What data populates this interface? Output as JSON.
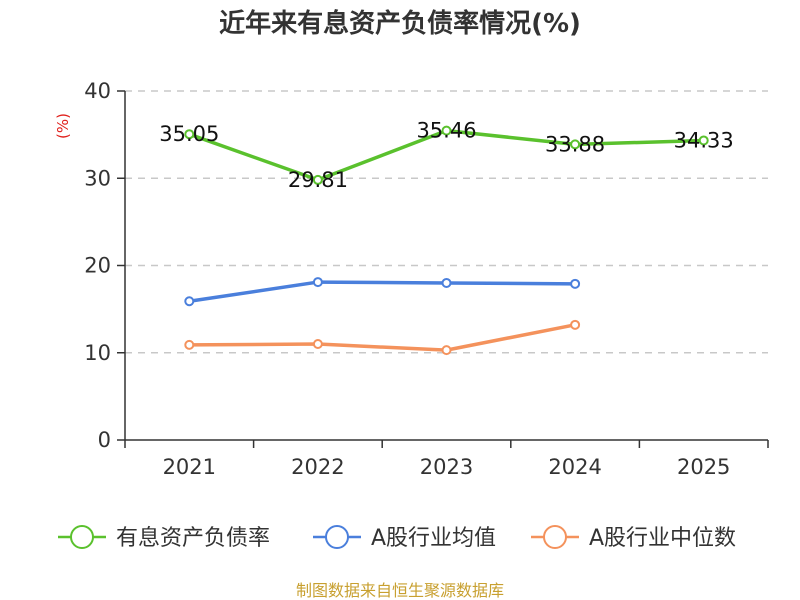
{
  "title": "近年来有息资产负债率情况(%)",
  "source": "制图数据来自恒生聚源数据库",
  "chart_data": {
    "type": "line",
    "title": "近年来有息资产负债率情况(%)",
    "ylabel": "(%)",
    "xlabel": "",
    "categories": [
      "2021",
      "2022",
      "2023",
      "2024",
      "2025"
    ],
    "ylim": [
      0,
      40
    ],
    "yticks": [
      0,
      10,
      20,
      30,
      40
    ],
    "grid": true,
    "legend_position": "bottom",
    "series": [
      {
        "name": "有息资产负债率",
        "color": "#5ac12d",
        "values": [
          35.05,
          29.81,
          35.46,
          33.88,
          34.33
        ],
        "labels": [
          "35.05",
          "29.81",
          "35.46",
          "33.88",
          "34.33"
        ]
      },
      {
        "name": "A股行业均值",
        "color": "#4a7fdc",
        "values": [
          15.9,
          18.1,
          18.0,
          17.9,
          null
        ]
      },
      {
        "name": "A股行业中位数",
        "color": "#f4925c",
        "values": [
          10.9,
          11.0,
          10.3,
          13.2,
          null
        ]
      }
    ]
  }
}
